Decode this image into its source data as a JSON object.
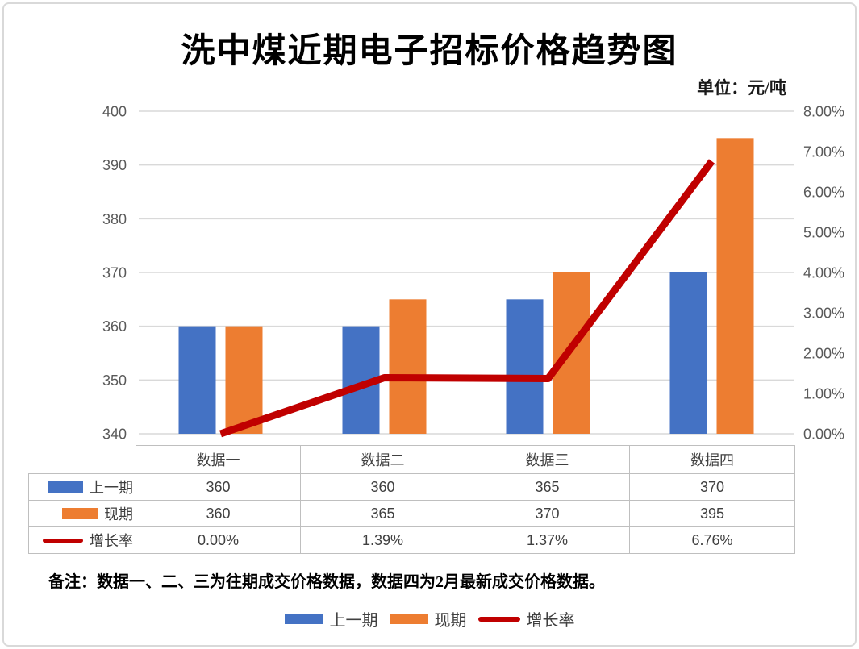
{
  "title": "洗中煤近期电子招标价格趋势图",
  "unit_label": "单位：元/吨",
  "note": "备注：数据一、二、三为往期成交价格数据，数据四为2月最新成交价格数据。",
  "colors": {
    "previous_period": "#4472C4",
    "current_period": "#ED7D31",
    "growth_rate": "#C00000",
    "gridline": "#D9D9D9",
    "axis_text": "#595959",
    "table_border": "#BFBFBF",
    "table_text": "#404040",
    "frame_border": "#D9D9D9"
  },
  "chart_data": {
    "type": "bar+line",
    "title": "洗中煤近期电子招标价格趋势图",
    "subtitle": "单位：元/吨",
    "categories": [
      "数据一",
      "数据二",
      "数据三",
      "数据四"
    ],
    "series": [
      {
        "name": "上一期",
        "chart_type": "bar",
        "axis": "left",
        "color": "#4472C4",
        "values": [
          360,
          360,
          365,
          370
        ]
      },
      {
        "name": "现期",
        "chart_type": "bar",
        "axis": "left",
        "color": "#ED7D31",
        "values": [
          360,
          365,
          370,
          395
        ]
      },
      {
        "name": "增长率",
        "chart_type": "line",
        "axis": "right",
        "color": "#C00000",
        "values": [
          0.0,
          1.39,
          1.37,
          6.76
        ],
        "value_labels": [
          "0.00%",
          "1.39%",
          "1.37%",
          "6.76%"
        ]
      }
    ],
    "left_axis": {
      "min": 340,
      "max": 400,
      "step": 10,
      "ticks": [
        "400",
        "390",
        "380",
        "370",
        "360",
        "350",
        "340"
      ]
    },
    "right_axis": {
      "min": 0,
      "max": 8,
      "step": 1,
      "ticks": [
        "8.00%",
        "7.00%",
        "6.00%",
        "5.00%",
        "4.00%",
        "3.00%",
        "2.00%",
        "1.00%",
        "0.00%"
      ]
    },
    "grid": true,
    "legend_position": "bottom"
  },
  "table": {
    "column_headers": [
      "数据一",
      "数据二",
      "数据三",
      "数据四"
    ],
    "rows": [
      {
        "label": "上一期",
        "swatch": "bar",
        "color": "#4472C4",
        "values": [
          "360",
          "360",
          "365",
          "370"
        ]
      },
      {
        "label": "现期",
        "swatch": "bar",
        "color": "#ED7D31",
        "values": [
          "360",
          "365",
          "370",
          "395"
        ]
      },
      {
        "label": "增长率",
        "swatch": "line",
        "color": "#C00000",
        "values": [
          "0.00%",
          "1.39%",
          "1.37%",
          "6.76%"
        ]
      }
    ]
  },
  "legend": {
    "items": [
      {
        "label": "上一期",
        "swatch": "bar",
        "color": "#4472C4"
      },
      {
        "label": "现期",
        "swatch": "bar",
        "color": "#ED7D31"
      },
      {
        "label": "增长率",
        "swatch": "line",
        "color": "#C00000"
      }
    ]
  }
}
